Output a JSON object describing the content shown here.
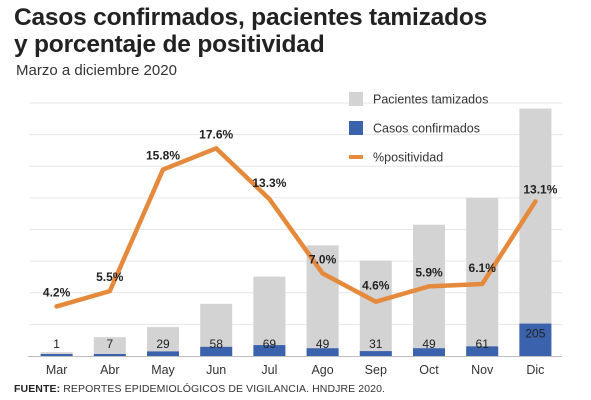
{
  "title": "Casos confirmados, pacientes tamizados\ny porcentaje de positividad",
  "subtitle": "Marzo a diciembre 2020",
  "source_label": "FUENTE:",
  "source_text": "REPORTES EPIDEMIOLÓGICOS DE VIGILANCIA. HNDJRE 2020.",
  "colors": {
    "tamizados": "#d3d3d3",
    "confirmados": "#3a62ad",
    "positividad": "#e58a3c",
    "grid": "#e6e6e6"
  },
  "chart_data": {
    "type": "bar",
    "categories": [
      "Mar",
      "Abr",
      "May",
      "Jun",
      "Jul",
      "Ago",
      "Sep",
      "Oct",
      "Nov",
      "Dic"
    ],
    "legend_position": "top-right",
    "grid": true,
    "series": [
      {
        "name": "Pacientes tamizados",
        "type": "bar",
        "values": [
          24,
          119,
          183,
          330,
          502,
          700,
          603,
          830,
          1000,
          1565
        ]
      },
      {
        "name": "Casos confirmados",
        "type": "bar",
        "values": [
          1,
          7,
          29,
          58,
          69,
          49,
          31,
          49,
          61,
          205
        ]
      },
      {
        "name": "%positividad",
        "type": "line",
        "values": [
          4.2,
          5.5,
          15.8,
          17.6,
          13.3,
          7.0,
          4.6,
          5.9,
          6.1,
          13.1
        ],
        "labels": [
          "4.2%",
          "5.5%",
          "15.8%",
          "17.6%",
          "13.3%",
          "7.0%",
          "4.6%",
          "5.9%",
          "6.1%",
          "13.1%"
        ]
      }
    ],
    "bar_ylim": [
      0,
      1600
    ],
    "line_ylim": [
      0,
      20
    ]
  }
}
